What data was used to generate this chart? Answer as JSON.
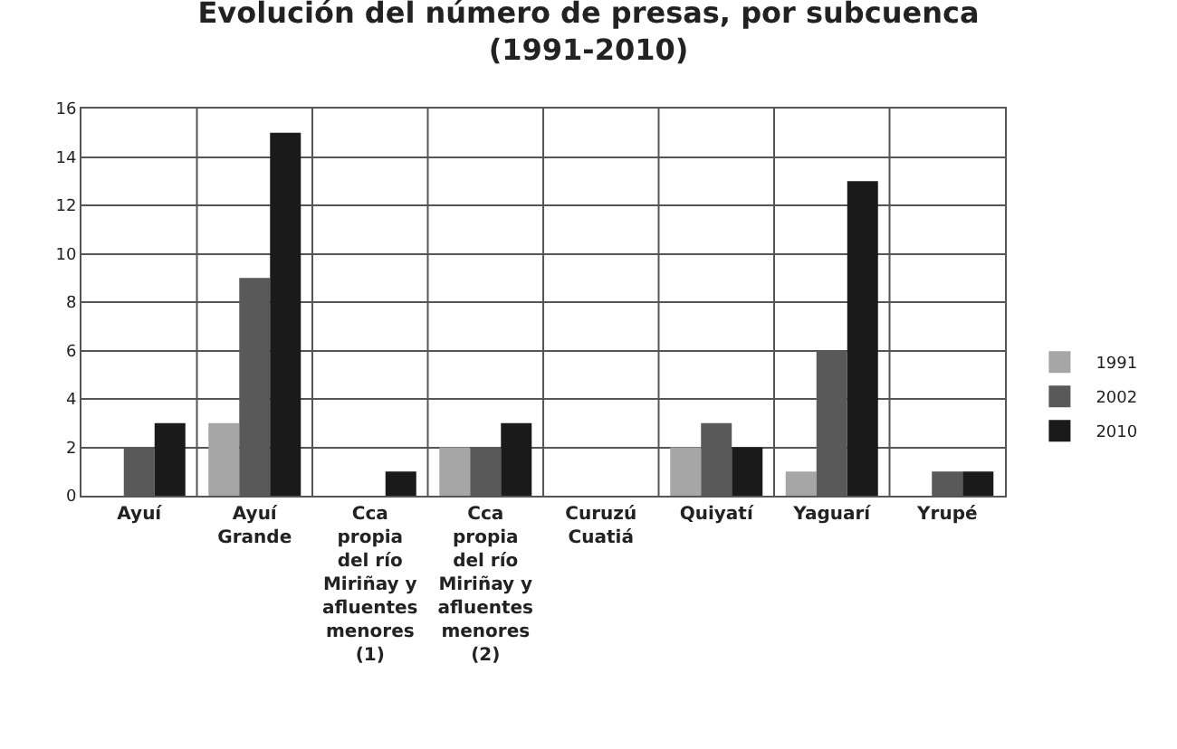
{
  "chart_data": {
    "type": "bar",
    "title": "Evolución del número de presas, por subcuenca\n(1991-2010)",
    "categories": [
      "Ayuí",
      "Ayuí\nGrande",
      "Cca\npropia\ndel río\nMiriñay y\nafluentes\nmenores\n(1)",
      "Cca\npropia\ndel río\nMiriñay y\nafluentes\nmenores\n(2)",
      "Curuzú\nCuatiá",
      "Quiyatí",
      "Yaguarí",
      "Yrupé"
    ],
    "series": [
      {
        "name": "1991",
        "color": "#a6a6a6",
        "values": [
          0,
          3,
          0,
          2,
          0,
          2,
          1,
          0
        ]
      },
      {
        "name": "2002",
        "color": "#595959",
        "values": [
          2,
          9,
          0,
          2,
          0,
          3,
          6,
          1
        ]
      },
      {
        "name": "2010",
        "color": "#1a1a1a",
        "values": [
          3,
          15,
          1,
          3,
          0,
          2,
          13,
          1
        ]
      }
    ],
    "ylim": [
      0,
      16
    ],
    "yticks": [
      0,
      2,
      4,
      6,
      8,
      10,
      12,
      14,
      16
    ],
    "grid": true,
    "legend": "right"
  }
}
